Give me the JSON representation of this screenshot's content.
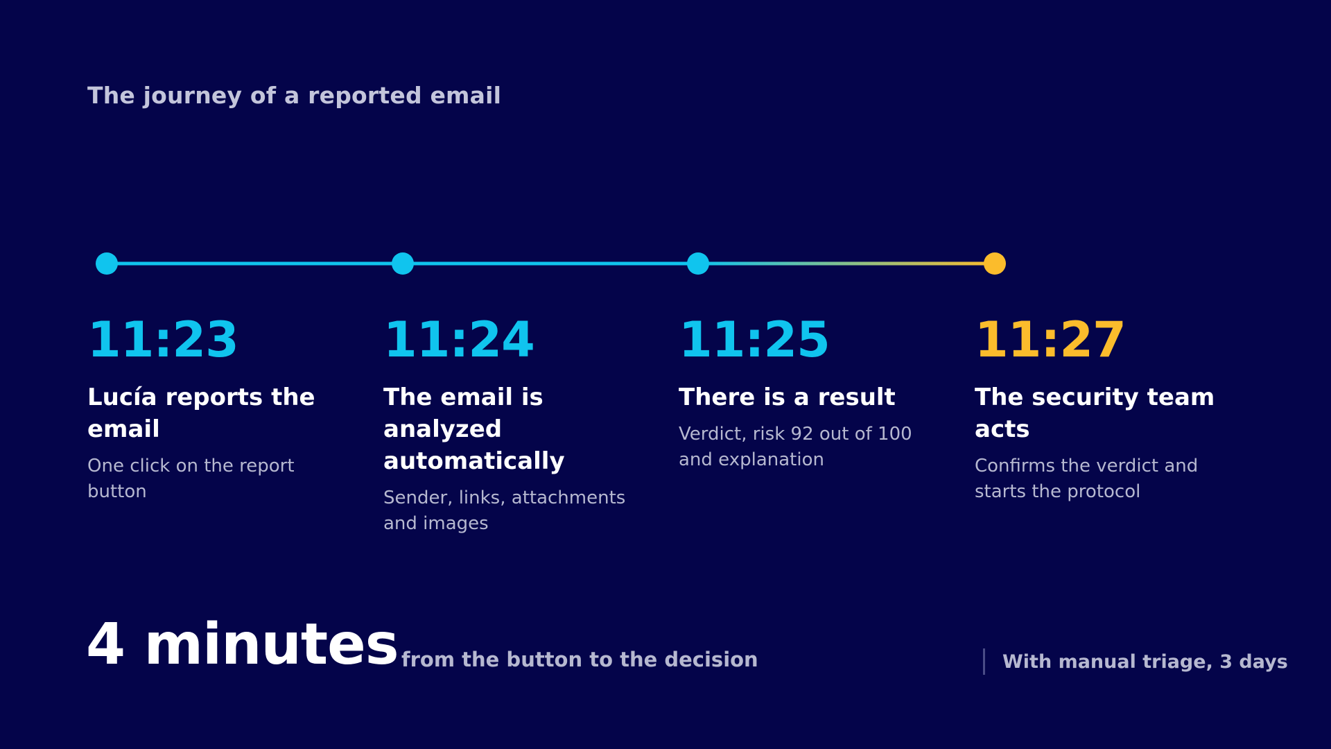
{
  "title": "The journey of a reported email",
  "colors": {
    "background": "#04044a",
    "cyan": "#10c4ee",
    "amber": "#fbbc2c",
    "text": "#ffffff",
    "muted": "#b6b8d0"
  },
  "steps": [
    {
      "time": "11:23",
      "heading": "Lucía reports the email",
      "description": "One click on the report button",
      "color": "#10c4ee"
    },
    {
      "time": "11:24",
      "heading": "The email is analyzed automatically",
      "description": "Sender, links, attachments and images",
      "color": "#10c4ee"
    },
    {
      "time": "11:25",
      "heading": "There is a result",
      "description": "Verdict, risk 92 out of 100 and explanation",
      "color": "#10c4ee"
    },
    {
      "time": "11:27",
      "heading": "The security team acts",
      "description": "Confirms the verdict and starts the protocol",
      "color": "#fbbc2c"
    }
  ],
  "summary": {
    "figure": "4 minutes",
    "caption": "from the button to the decision",
    "comparison": "With manual triage, 3 days"
  }
}
